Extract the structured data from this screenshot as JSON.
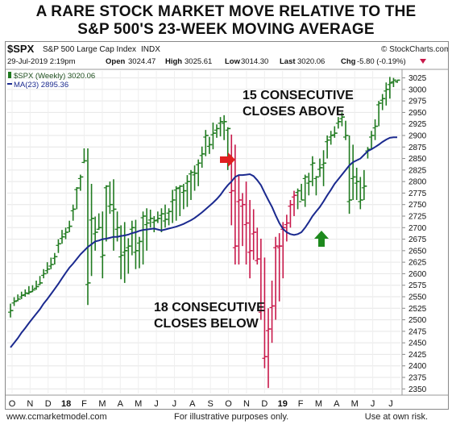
{
  "headline": {
    "line1": "A RARE STOCK MARKET MOVE RELATIVE TO THE",
    "line2": "S&P 500'S 23-WEEK MOVING AVERAGE"
  },
  "header": {
    "symbol": "$SPX",
    "name": "S&P 500 Large Cap Index",
    "exchange": "INDX",
    "brand": "© StockCharts.com",
    "date": "29-Jul-2019 2:19pm",
    "open_label": "Open",
    "open": "3024.47",
    "high_label": "High",
    "high": "3025.61",
    "low_label": "Low",
    "low": "3014.30",
    "last_label": "Last",
    "last": "3020.06",
    "chg_label": "Chg",
    "chg": "-5.80 (-0.19%)"
  },
  "legend": {
    "price": "$SPX (Weekly) 3020.06",
    "ma": "MA(23) 2895.36"
  },
  "annotations": {
    "above_line1": "15 CONSECUTIVE",
    "above_line2": "CLOSES ABOVE",
    "below_line1": "18 CONSECUTIVE",
    "below_line2": "CLOSES BELOW"
  },
  "footer": {
    "left": "www.ccmarketmodel.com",
    "mid": "For illustrative purposes only.",
    "right": "Use at own risk."
  },
  "colors": {
    "up_bars": "#1f7a1f",
    "down_bars": "#c8184a",
    "moving_average": "#1b2a8f",
    "arrow_red": "#e02020",
    "arrow_green": "#1e8a1e"
  },
  "chart_data": {
    "type": "ohlc",
    "ylim": [
      2340,
      3040
    ],
    "y_ticks": [
      2350,
      2375,
      2400,
      2425,
      2450,
      2475,
      2500,
      2525,
      2550,
      2575,
      2600,
      2625,
      2650,
      2675,
      2700,
      2725,
      2750,
      2775,
      2800,
      2825,
      2850,
      2875,
      2900,
      2925,
      2950,
      2975,
      3000,
      3025
    ],
    "x_labels": [
      "O",
      "N",
      "D",
      "18",
      "F",
      "M",
      "A",
      "M",
      "J",
      "J",
      "A",
      "S",
      "O",
      "N",
      "D",
      "19",
      "F",
      "M",
      "A",
      "M",
      "J",
      "J"
    ],
    "bold_x_labels": [
      "18",
      "19"
    ],
    "series": [
      {
        "name": "$SPX (Weekly)",
        "highs": [
          2535,
          2549,
          2555,
          2561,
          2566,
          2573,
          2575,
          2585,
          2595,
          2610,
          2625,
          2635,
          2645,
          2675,
          2695,
          2700,
          2715,
          2750,
          2788,
          2815,
          2872,
          2872,
          2795,
          2724,
          2731,
          2735,
          2792,
          2800,
          2805,
          2735,
          2705,
          2712,
          2677,
          2715,
          2717,
          2680,
          2735,
          2742,
          2739,
          2725,
          2735,
          2742,
          2750,
          2742,
          2782,
          2790,
          2792,
          2795,
          2814,
          2825,
          2835,
          2848,
          2876,
          2912,
          2897,
          2928,
          2924,
          2940,
          2944,
          2918,
          2902,
          2880,
          2815,
          2775,
          2800,
          2760,
          2740,
          2700,
          2676,
          2635,
          2525,
          2585,
          2680,
          2688,
          2712,
          2728,
          2760,
          2780,
          2785,
          2795,
          2815,
          2819,
          2855,
          2812,
          2850,
          2868,
          2900,
          2910,
          2920,
          2940,
          2950,
          2932,
          2900,
          2880,
          2830,
          2810,
          2825,
          2875,
          2910,
          2935,
          2975,
          2990,
          3015,
          3027,
          3025,
          3020
        ],
        "lows": [
          2505,
          2530,
          2540,
          2545,
          2550,
          2555,
          2560,
          2565,
          2575,
          2590,
          2600,
          2610,
          2620,
          2645,
          2665,
          2675,
          2690,
          2715,
          2740,
          2780,
          2840,
          2532,
          2595,
          2650,
          2695,
          2590,
          2670,
          2730,
          2650,
          2670,
          2588,
          2580,
          2600,
          2640,
          2610,
          2612,
          2620,
          2650,
          2700,
          2690,
          2710,
          2690,
          2700,
          2705,
          2710,
          2715,
          2725,
          2740,
          2745,
          2760,
          2780,
          2790,
          2830,
          2855,
          2860,
          2870,
          2895,
          2898,
          2890,
          2825,
          2705,
          2620,
          2620,
          2660,
          2620,
          2590,
          2630,
          2620,
          2500,
          2395,
          2352,
          2450,
          2500,
          2540,
          2590,
          2670,
          2700,
          2725,
          2740,
          2760,
          2745,
          2770,
          2790,
          2770,
          2810,
          2790,
          2850,
          2880,
          2895,
          2915,
          2920,
          2890,
          2730,
          2760,
          2760,
          2740,
          2760,
          2850,
          2870,
          2890,
          2920,
          2955,
          2965,
          2980,
          3005,
          3014
        ],
        "closes": [
          2520,
          2540,
          2545,
          2553,
          2558,
          2560,
          2565,
          2572,
          2580,
          2600,
          2610,
          2620,
          2637,
          2665,
          2680,
          2690,
          2703,
          2740,
          2786,
          2810,
          2845,
          2580,
          2720,
          2690,
          2700,
          2640,
          2790,
          2750,
          2740,
          2700,
          2640,
          2650,
          2660,
          2700,
          2650,
          2670,
          2725,
          2710,
          2720,
          2715,
          2720,
          2730,
          2718,
          2735,
          2760,
          2785,
          2790,
          2780,
          2800,
          2820,
          2818,
          2840,
          2860,
          2900,
          2880,
          2905,
          2915,
          2930,
          2930,
          2915,
          2780,
          2660,
          2760,
          2750,
          2710,
          2650,
          2690,
          2632,
          2520,
          2420,
          2480,
          2530,
          2660,
          2660,
          2700,
          2710,
          2750,
          2770,
          2780,
          2760,
          2810,
          2800,
          2840,
          2810,
          2830,
          2840,
          2890,
          2900,
          2905,
          2930,
          2940,
          2900,
          2760,
          2810,
          2800,
          2760,
          2790,
          2870,
          2900,
          2920,
          2970,
          2980,
          3000,
          3014,
          3020,
          3020
        ]
      },
      {
        "name": "MA(23)",
        "values": [
          2440,
          2450,
          2460,
          2472,
          2482,
          2493,
          2503,
          2513,
          2523,
          2535,
          2545,
          2556,
          2567,
          2578,
          2590,
          2602,
          2613,
          2622,
          2632,
          2642,
          2650,
          2658,
          2664,
          2670,
          2672,
          2675,
          2676,
          2678,
          2680,
          2680,
          2682,
          2683,
          2685,
          2688,
          2690,
          2693,
          2695,
          2696,
          2697,
          2698,
          2696,
          2694,
          2696,
          2698,
          2700,
          2702,
          2705,
          2708,
          2712,
          2716,
          2721,
          2727,
          2733,
          2740,
          2747,
          2754,
          2762,
          2771,
          2782,
          2792,
          2800,
          2810,
          2814,
          2814,
          2815,
          2816,
          2812,
          2803,
          2792,
          2776,
          2760,
          2745,
          2727,
          2710,
          2697,
          2690,
          2686,
          2684,
          2686,
          2690,
          2700,
          2712,
          2725,
          2735,
          2745,
          2757,
          2770,
          2782,
          2795,
          2805,
          2815,
          2825,
          2835,
          2842,
          2846,
          2850,
          2858,
          2866,
          2870,
          2875,
          2880,
          2886,
          2891,
          2895,
          2896,
          2896
        ]
      }
    ],
    "down_bar_range": [
      60,
      77
    ]
  }
}
